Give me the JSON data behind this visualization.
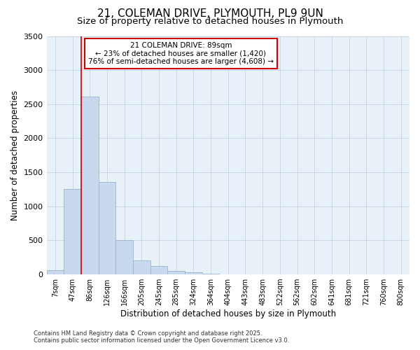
{
  "title_line1": "21, COLEMAN DRIVE, PLYMOUTH, PL9 9UN",
  "title_line2": "Size of property relative to detached houses in Plymouth",
  "xlabel": "Distribution of detached houses by size in Plymouth",
  "ylabel": "Number of detached properties",
  "bar_labels": [
    "7sqm",
    "47sqm",
    "86sqm",
    "126sqm",
    "166sqm",
    "205sqm",
    "245sqm",
    "285sqm",
    "324sqm",
    "364sqm",
    "404sqm",
    "443sqm",
    "483sqm",
    "522sqm",
    "562sqm",
    "602sqm",
    "641sqm",
    "681sqm",
    "721sqm",
    "760sqm",
    "800sqm"
  ],
  "bar_values": [
    60,
    1250,
    2610,
    1360,
    500,
    210,
    120,
    55,
    30,
    10,
    5,
    5,
    0,
    0,
    0,
    0,
    0,
    0,
    0,
    0,
    0
  ],
  "bar_color": "#c9d9ed",
  "bar_edge_color": "#9ab5ce",
  "annotation_text_line1": "21 COLEMAN DRIVE: 89sqm",
  "annotation_text_line2": "← 23% of detached houses are smaller (1,420)",
  "annotation_text_line3": "76% of semi-detached houses are larger (4,608) →",
  "annotation_box_color": "#ffffff",
  "annotation_box_edge_color": "#cc0000",
  "vertical_line_color": "#cc0000",
  "ylim": [
    0,
    3500
  ],
  "yticks": [
    0,
    500,
    1000,
    1500,
    2000,
    2500,
    3000,
    3500
  ],
  "grid_color": "#c8d8e8",
  "background_color": "#e8f0f8",
  "footer_line1": "Contains HM Land Registry data © Crown copyright and database right 2025.",
  "footer_line2": "Contains public sector information licensed under the Open Government Licence v3.0.",
  "title_fontsize": 11,
  "subtitle_fontsize": 9.5
}
